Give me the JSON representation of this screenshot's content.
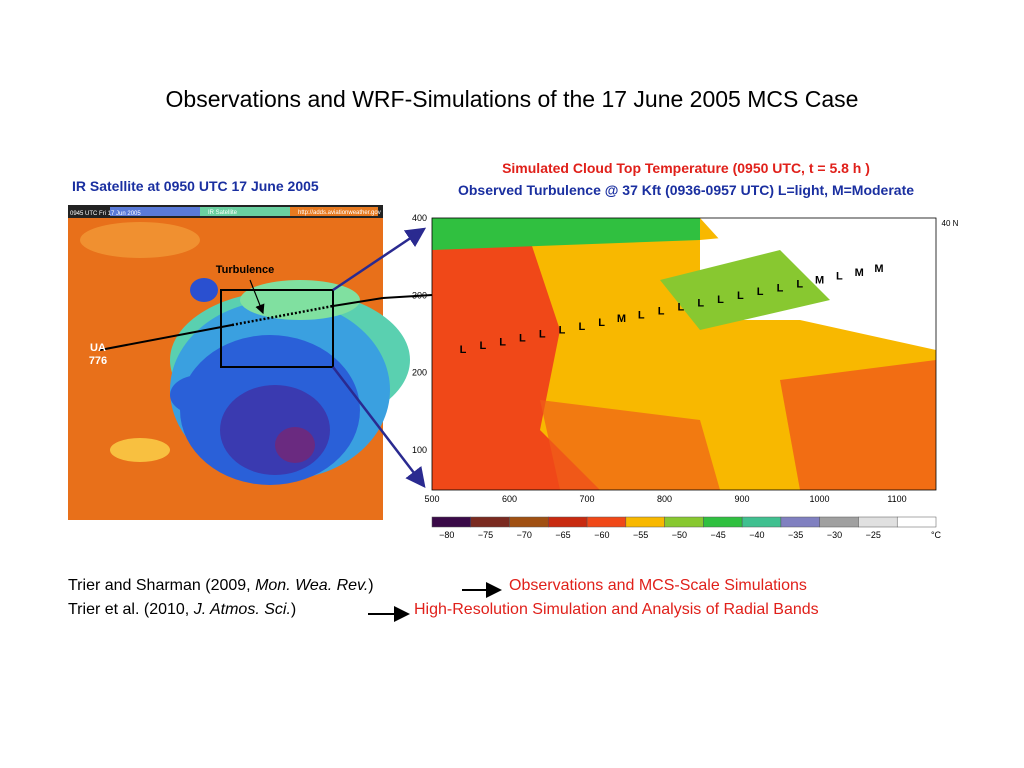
{
  "title": "Observations and WRF-Simulations of the 17 June 2005 MCS Case",
  "left_panel": {
    "caption": "IR Satellite at 0950 UTC 17 June 2005",
    "header": [
      "0945 UTC Fri 17 Jun 2005",
      "IR Satellite",
      "http://adds.aviationweather.gov"
    ],
    "turbulence_label": "Turbulence",
    "flight_label": [
      "UA",
      "776"
    ]
  },
  "right_panel": {
    "caption_line1": "Simulated Cloud Top Temperature (0950 UTC, t = 5.8 h )",
    "caption_line2": "Observed Turbulence @ 37 Kft (0936-0957 UTC) L=light, M=Moderate",
    "yticks": [
      "400",
      "300",
      "200",
      "100"
    ],
    "xticks": [
      "500",
      "600",
      "700",
      "800",
      "900",
      "1000",
      "1100"
    ],
    "latitude_label": "40 N",
    "turbulence_reports": [
      "L",
      "L",
      "L",
      "L",
      "L",
      "L",
      "L",
      "L",
      "M",
      "L",
      "L",
      "L",
      "L",
      "L",
      "L",
      "L",
      "L",
      "L",
      "M",
      "L",
      "M",
      "M"
    ],
    "colorbar_labels": [
      "−80",
      "−75",
      "−70",
      "−65",
      "−60",
      "−55",
      "−50",
      "−45",
      "−40",
      "−35",
      "−30",
      "−25"
    ],
    "colorbar_unit": "°C"
  },
  "references": [
    {
      "authors": "Trier and Sharman (2009, ",
      "journal": "Mon. Wea. Rev.",
      "close": ")",
      "topic": "Observations and MCS-Scale Simulations"
    },
    {
      "authors": "Trier et al. (2010, ",
      "journal": "J. Atmos. Sci.",
      "close": ")",
      "topic": "High-Resolution Simulation and Analysis of Radial Bands"
    }
  ]
}
